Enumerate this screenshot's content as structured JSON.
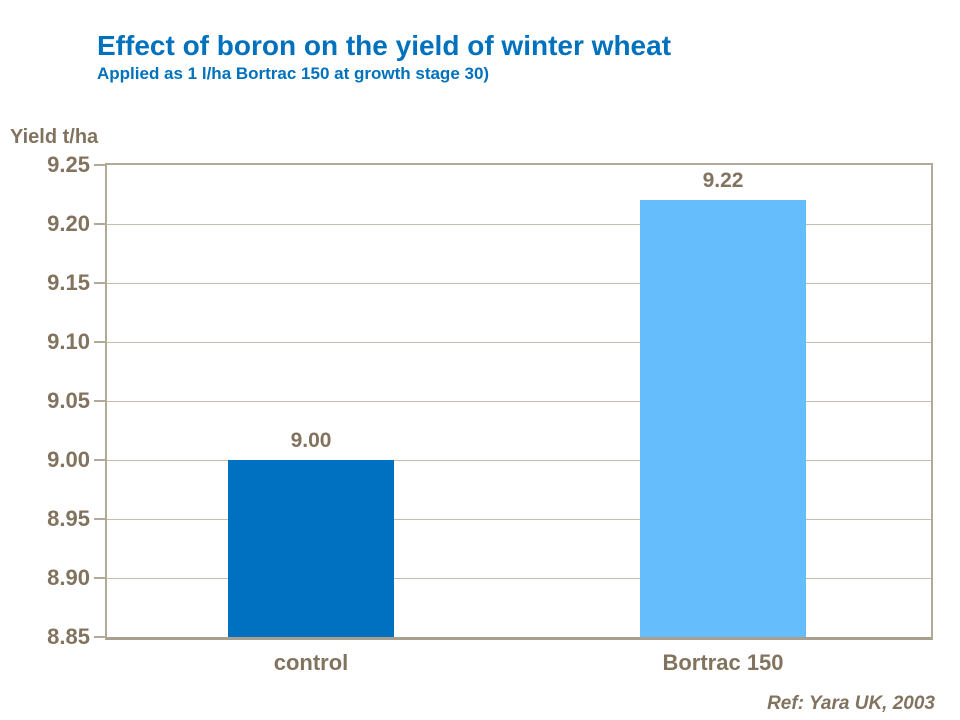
{
  "header": {
    "title": "Effect of boron on the yield of winter wheat",
    "subtitle": "Applied as 1 l/ha Bortrac 150 at growth stage 30)"
  },
  "footer": {
    "ref": "Ref: Yara UK, 2003"
  },
  "colors": {
    "title_blue": "#0071BC",
    "bar_control": "#0070C0",
    "bar_bortrac": "#66BDFB",
    "text_brown": "#82735F",
    "axis_beige": "#B3A999",
    "gridline_beige": "#C6BDAF"
  },
  "chart_data": {
    "type": "bar",
    "title": "Effect of boron on the yield of winter wheat",
    "subtitle": "Applied as 1 l/ha Bortrac 150 at growth stage 30)",
    "categories": [
      "control",
      "Bortrac 150"
    ],
    "values": [
      9.0,
      9.22
    ],
    "data_labels": [
      "9.00",
      "9.22"
    ],
    "bar_colors": [
      "#0070C0",
      "#66BDFB"
    ],
    "xlabel": "",
    "ylabel": "Yield t/ha",
    "ylim": [
      8.85,
      9.25
    ],
    "yticks": [
      8.85,
      8.9,
      8.95,
      9.0,
      9.05,
      9.1,
      9.15,
      9.2,
      9.25
    ],
    "grid": true,
    "legend": false,
    "annotation": "Ref: Yara UK, 2003"
  }
}
